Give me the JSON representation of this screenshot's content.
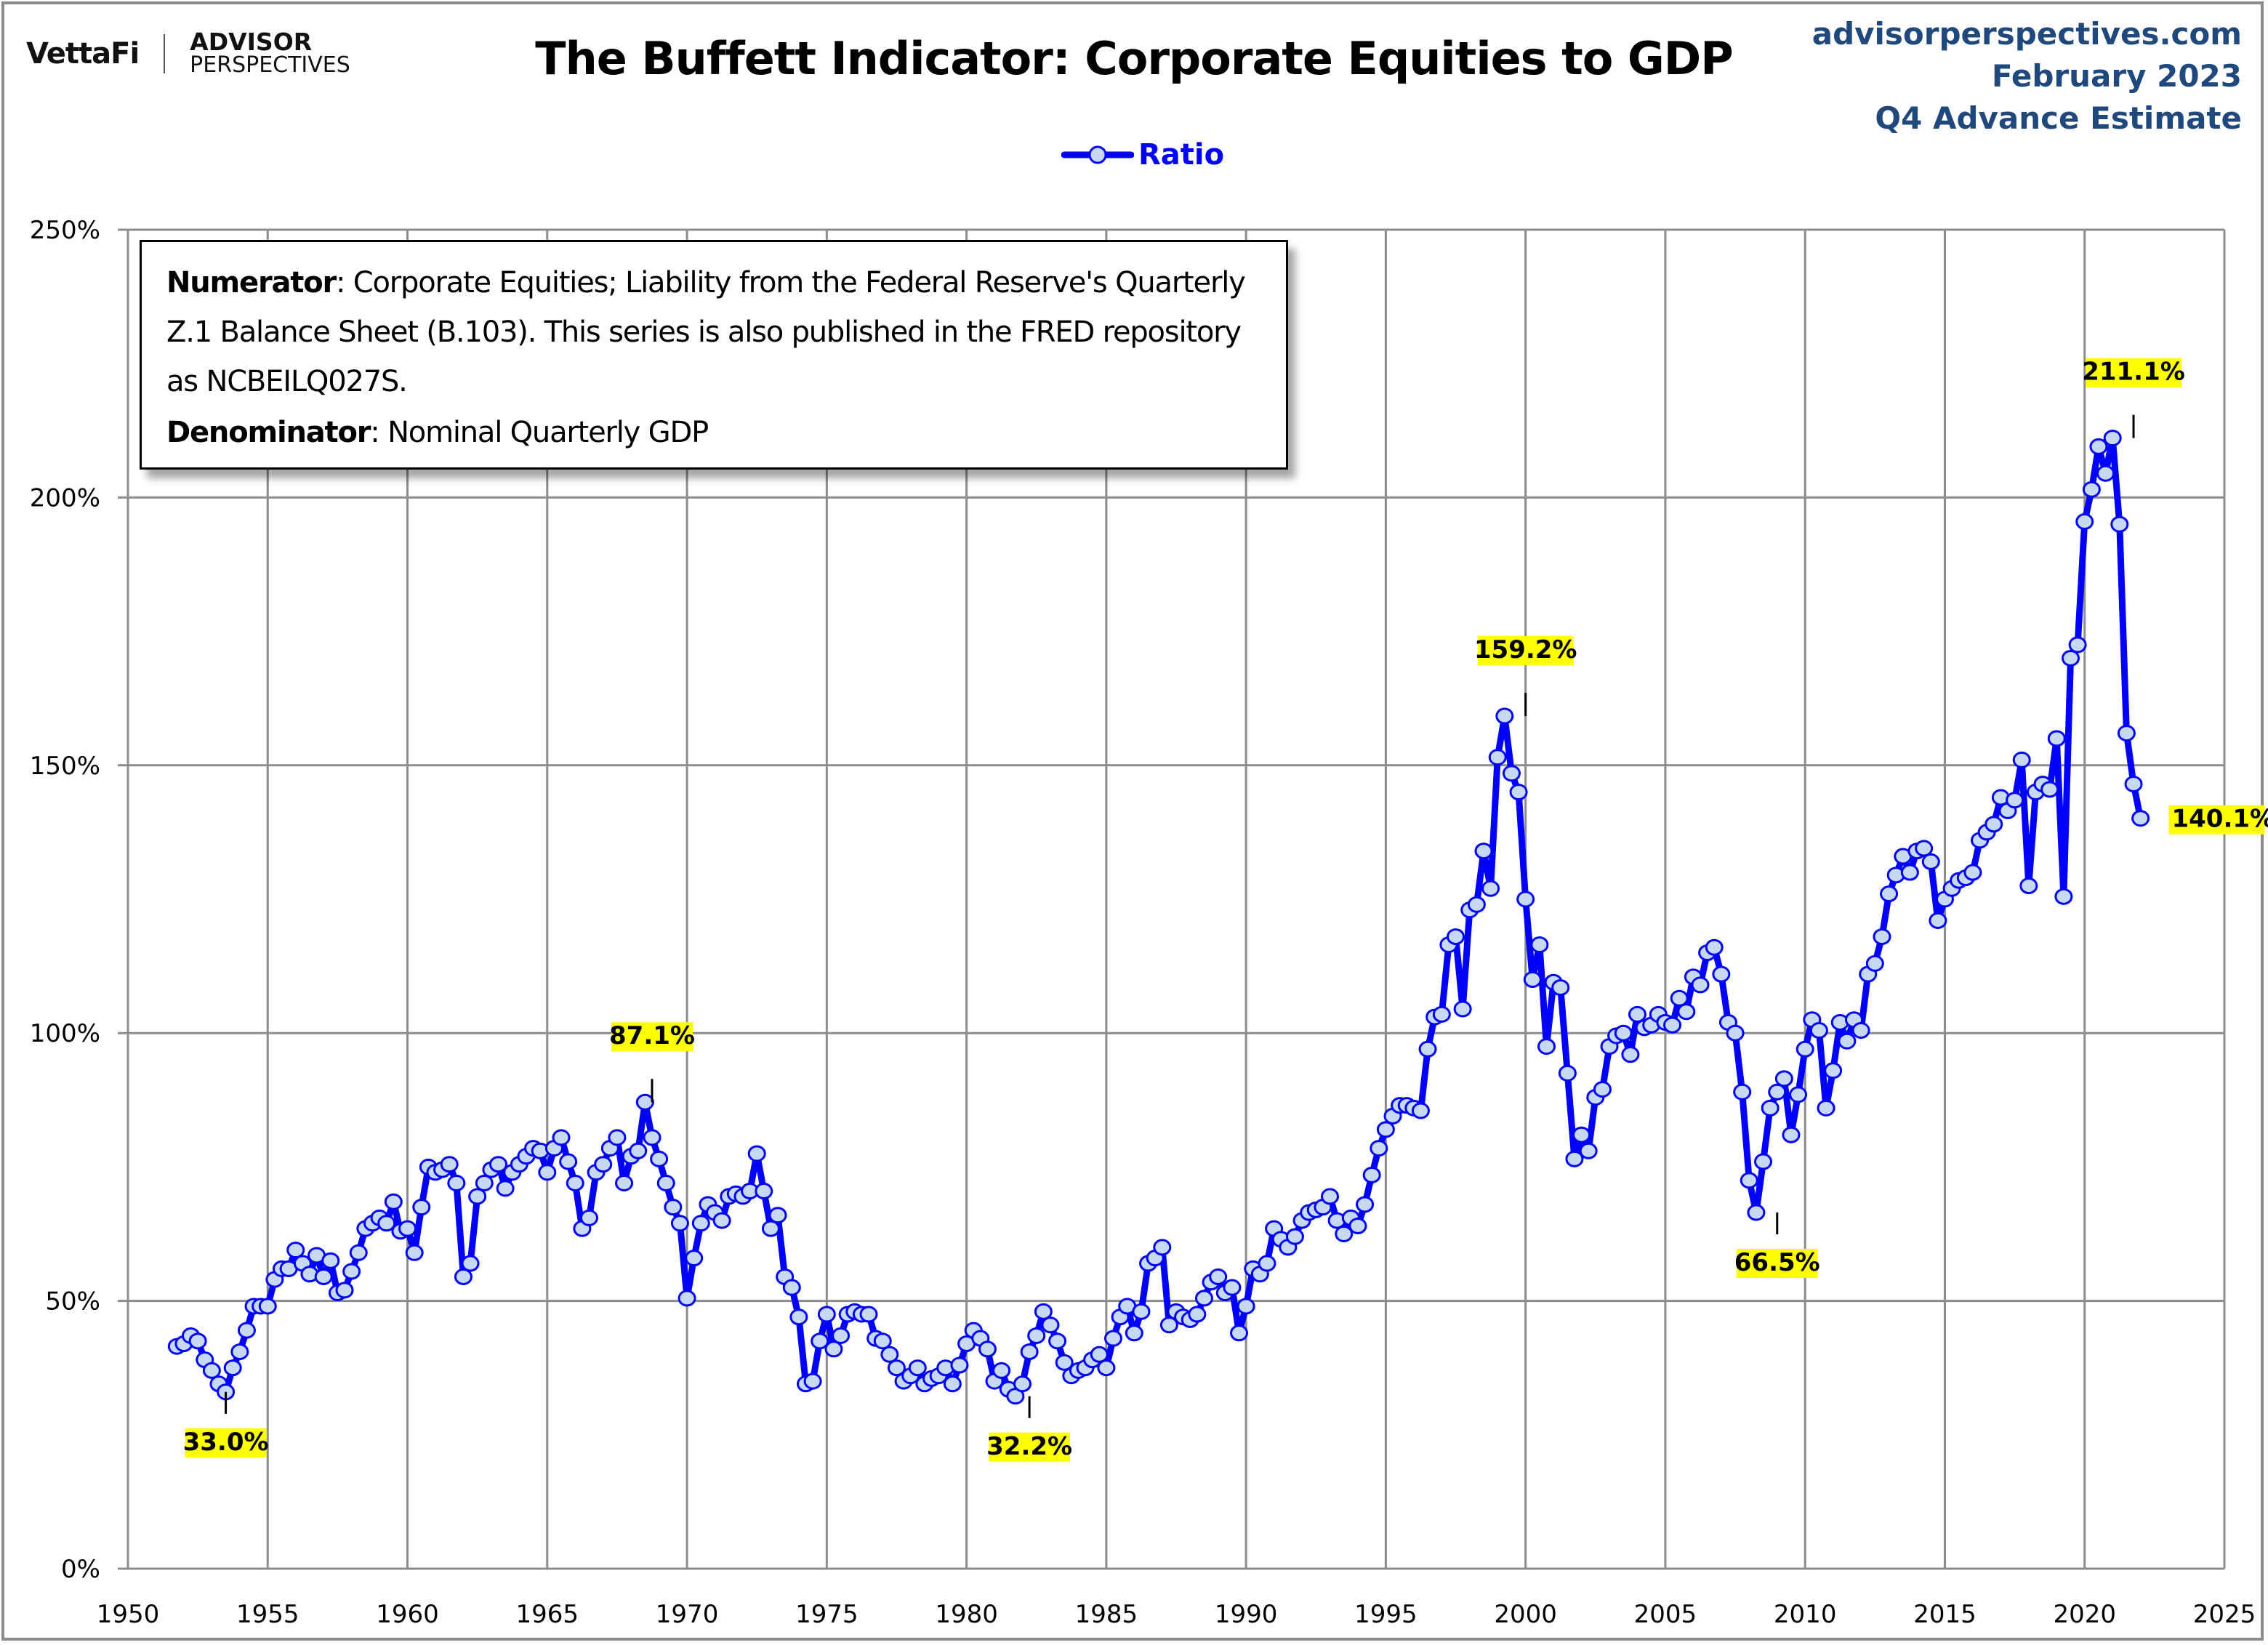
{
  "header": {
    "brand_left": "VettaFi",
    "brand_right_line1": "ADVISOR",
    "brand_right_line2": "PERSPECTIVES",
    "title": "The Buffett Indicator: Corporate Equities to GDP",
    "source_site": "advisorperspectives.com",
    "source_date": "February 2023",
    "source_note": "Q4 Advance Estimate"
  },
  "colors": {
    "series_line": "#0000ff",
    "marker_fill": "#c6d9f1",
    "source_text": "#1f497d",
    "gridline": "#8c8c8c",
    "callout_highlight": "#ffff00"
  },
  "notes": {
    "numerator_label": "Numerator",
    "numerator_text": ": Corporate Equities; Liability from the Federal Reserve's Quarterly Z.1 Balance Sheet (B.103). This series is also published in the FRED repository as NCBEILQ027S.",
    "denominator_label": "Denominator",
    "denominator_text": ": Nominal Quarterly GDP"
  },
  "chart_data": {
    "type": "line",
    "title": "The Buffett Indicator: Corporate Equities to GDP",
    "xlabel": "",
    "ylabel": "",
    "xlim": [
      1950,
      2025
    ],
    "ylim": [
      0,
      250
    ],
    "x_ticks": [
      1950,
      1955,
      1960,
      1965,
      1970,
      1975,
      1980,
      1985,
      1990,
      1995,
      2000,
      2005,
      2010,
      2015,
      2020,
      2025
    ],
    "x_tick_labels": [
      "1950",
      "1955",
      "1960",
      "1965",
      "1970",
      "1975",
      "1980",
      "1985",
      "1990",
      "1995",
      "2000",
      "2005",
      "2010",
      "2015",
      "2020",
      "2025"
    ],
    "y_ticks": [
      0,
      50,
      100,
      150,
      200,
      250
    ],
    "y_tick_labels": [
      "0%",
      "50%",
      "100%",
      "150%",
      "200%",
      "250%"
    ],
    "grid": true,
    "legend": {
      "position": "top-center",
      "entries": [
        "Ratio"
      ]
    },
    "series": [
      {
        "name": "Ratio",
        "x_start": 1951.75,
        "x_step": 0.25,
        "unit": "percent",
        "values": [
          41.5,
          42.0,
          43.5,
          42.5,
          39.0,
          37.0,
          34.5,
          33.0,
          37.5,
          40.5,
          44.5,
          49.0,
          49.0,
          49.0,
          54.0,
          56.0,
          56.0,
          59.5,
          57.0,
          55.0,
          58.5,
          54.5,
          57.5,
          51.5,
          52.0,
          55.5,
          59.0,
          63.5,
          64.5,
          65.5,
          64.5,
          68.5,
          63.0,
          63.5,
          59.0,
          67.5,
          75.0,
          74.0,
          74.5,
          75.5,
          72.0,
          54.5,
          57.0,
          69.5,
          72.0,
          74.5,
          75.5,
          71.0,
          74.0,
          75.5,
          77.0,
          78.5,
          78.0,
          74.0,
          78.5,
          80.5,
          76.0,
          72.0,
          63.5,
          65.5,
          74.0,
          75.5,
          78.5,
          80.5,
          72.0,
          77.0,
          78.0,
          87.1,
          80.5,
          76.5,
          72.0,
          67.5,
          64.5,
          50.5,
          58.0,
          64.5,
          68.0,
          66.5,
          65.0,
          69.5,
          70.0,
          69.5,
          70.5,
          77.5,
          70.5,
          63.5,
          66.0,
          54.5,
          52.5,
          47.0,
          34.5,
          35.0,
          42.5,
          47.5,
          41.0,
          43.5,
          47.5,
          48.0,
          47.5,
          47.5,
          43.0,
          42.5,
          40.0,
          37.5,
          35.0,
          36.0,
          37.5,
          34.5,
          35.5,
          36.0,
          37.5,
          34.5,
          38.0,
          42.0,
          44.5,
          43.0,
          41.0,
          35.0,
          37.0,
          33.5,
          32.2,
          34.5,
          40.5,
          43.5,
          48.0,
          45.5,
          42.5,
          38.5,
          36.0,
          37.0,
          37.5,
          39.0,
          40.0,
          37.5,
          43.0,
          47.0,
          49.0,
          44.0,
          48.0,
          57.0,
          58.0,
          60.0,
          45.5,
          48.0,
          47.0,
          46.5,
          47.5,
          50.5,
          53.5,
          54.5,
          51.5,
          52.5,
          44.0,
          49.0,
          56.0,
          55.0,
          57.0,
          63.5,
          61.5,
          60.0,
          62.0,
          65.0,
          66.5,
          67.0,
          67.5,
          69.5,
          65.0,
          62.5,
          65.5,
          64.0,
          68.0,
          73.5,
          78.5,
          82.0,
          84.5,
          86.5,
          86.5,
          86.0,
          85.5,
          97.0,
          103.0,
          103.5,
          116.5,
          118.0,
          104.5,
          123.0,
          124.0,
          134.0,
          127.0,
          151.5,
          159.2,
          148.5,
          145.0,
          125.0,
          110.0,
          116.5,
          97.5,
          109.5,
          108.5,
          92.5,
          76.5,
          81.0,
          78.0,
          88.0,
          89.5,
          97.5,
          99.5,
          100.0,
          96.0,
          103.5,
          101.0,
          101.5,
          103.5,
          102.0,
          101.5,
          106.5,
          104.0,
          110.5,
          109.0,
          115.0,
          116.0,
          111.0,
          102.0,
          100.0,
          89.0,
          72.5,
          66.5,
          76.0,
          86.0,
          89.0,
          91.5,
          81.0,
          88.5,
          97.0,
          102.5,
          100.5,
          86.0,
          93.0,
          102.0,
          98.5,
          102.5,
          100.5,
          111.0,
          113.0,
          118.0,
          126.0,
          129.5,
          133.0,
          130.0,
          134.0,
          134.5,
          132.0,
          121.0,
          125.0,
          127.0,
          128.5,
          129.0,
          130.0,
          136.0,
          137.5,
          139.0,
          144.0,
          141.5,
          143.5,
          151.0,
          127.5,
          145.0,
          146.5,
          145.5,
          155.0,
          125.5,
          170.0,
          172.5,
          195.5,
          201.5,
          209.5,
          204.5,
          211.1,
          195.0,
          156.0,
          146.5,
          140.1
        ]
      }
    ],
    "annotations": [
      {
        "label": "33.0%",
        "x": 1953.5,
        "y": 33.0,
        "placement": "below"
      },
      {
        "label": "87.1%",
        "x": 1968.75,
        "y": 87.1,
        "placement": "above"
      },
      {
        "label": "32.2%",
        "x": 1982.25,
        "y": 32.2,
        "placement": "below"
      },
      {
        "label": "159.2%",
        "x": 2000.0,
        "y": 159.2,
        "placement": "above"
      },
      {
        "label": "66.5%",
        "x": 2009.0,
        "y": 66.5,
        "placement": "below"
      },
      {
        "label": "211.1%",
        "x": 2021.75,
        "y": 211.1,
        "placement": "above"
      },
      {
        "label": "140.1%",
        "x": 2022.75,
        "y": 140.1,
        "placement": "right"
      }
    ]
  }
}
